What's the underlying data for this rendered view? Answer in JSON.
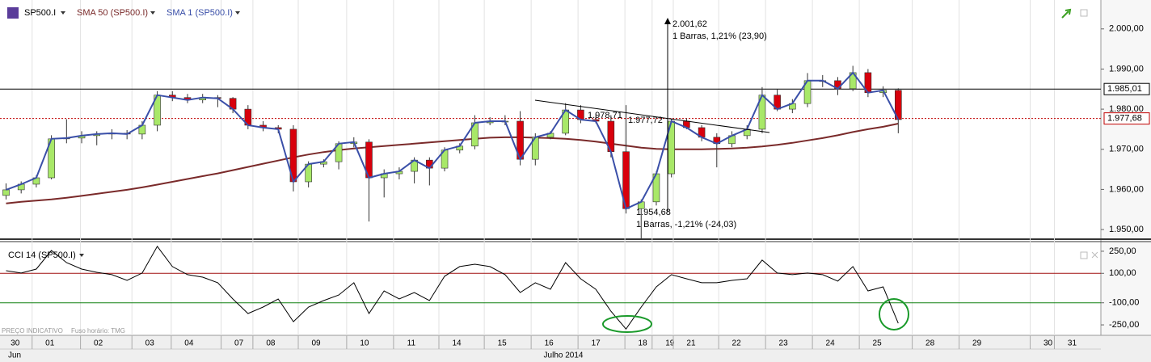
{
  "chart_data": [
    {
      "type": "candlestick",
      "name": "SP500.I",
      "up_color": "#a8e868",
      "down_color": "#d8000c",
      "xlim": [
        -0.4,
        72.4
      ],
      "ylim": [
        1947.8,
        2006.6
      ],
      "yticks": [
        {
          "value": 1950,
          "label": "1.950,00"
        },
        {
          "value": 1960,
          "label": "1.960,00"
        },
        {
          "value": 1970,
          "label": "1.970,00"
        },
        {
          "value": 1980,
          "label": "1.980,00"
        },
        {
          "value": 1990,
          "label": "1.990,00"
        },
        {
          "value": 2000,
          "label": "2.000,00"
        }
      ],
      "candles": [
        [
          1958.5,
          1961.5,
          1957.5,
          1959.9
        ],
        [
          1959.9,
          1962,
          1959,
          1961.3
        ],
        [
          1961.3,
          1963.5,
          1960.5,
          1962.9
        ],
        [
          1962.9,
          1973.5,
          1962.5,
          1972.6
        ],
        [
          1972.6,
          1977.5,
          1971.5,
          1972.8
        ],
        [
          1972.8,
          1974.5,
          1971.5,
          1973.4
        ],
        [
          1973.4,
          1974.5,
          1971,
          1973.8
        ],
        [
          1973.8,
          1975,
          1972.5,
          1974
        ],
        [
          1974,
          1974.8,
          1972.5,
          1973.8
        ],
        [
          1973.8,
          1977,
          1972.5,
          1976
        ],
        [
          1976,
          1984.5,
          1974.5,
          1983.5
        ],
        [
          1983.5,
          1984.5,
          1982,
          1982.9
        ],
        [
          1982.9,
          1983.8,
          1981.5,
          1982.3
        ],
        [
          1982.3,
          1983.8,
          1981.5,
          1982.9
        ],
        [
          1982.9,
          1983.5,
          1980.5,
          1982.7
        ],
        [
          1982.7,
          1983,
          1979,
          1980
        ],
        [
          1980,
          1981,
          1975,
          1976
        ],
        [
          1976,
          1977,
          1974.5,
          1975.4
        ],
        [
          1975.4,
          1976,
          1974,
          1975
        ],
        [
          1975,
          1976,
          1959.5,
          1961.9
        ],
        [
          1961.9,
          1967,
          1960.5,
          1966.3
        ],
        [
          1966.3,
          1967.5,
          1965.5,
          1966.9
        ],
        [
          1966.9,
          1972,
          1965,
          1971.4
        ],
        [
          1971.4,
          1973,
          1970.5,
          1971.8
        ],
        [
          1971.8,
          1972.5,
          1952,
          1962.9
        ],
        [
          1962.9,
          1965,
          1958,
          1963.9
        ],
        [
          1963.9,
          1965.5,
          1962.5,
          1964.5
        ],
        [
          1964.5,
          1968,
          1961.5,
          1967.3
        ],
        [
          1967.3,
          1968,
          1961,
          1965.3
        ],
        [
          1965.3,
          1970.5,
          1964.5,
          1969.8
        ],
        [
          1969.8,
          1971.5,
          1969,
          1970.8
        ],
        [
          1970.8,
          1978.5,
          1970,
          1976.6
        ],
        [
          1976.6,
          1978,
          1976,
          1977
        ],
        [
          1977,
          1978.5,
          1976,
          1977
        ],
        [
          1977,
          1979.5,
          1966,
          1967.5
        ],
        [
          1967.5,
          1974,
          1966,
          1973
        ],
        [
          1973,
          1974.5,
          1972.5,
          1974
        ],
        [
          1974,
          1981.5,
          1973.5,
          1979.8
        ],
        [
          1979.8,
          1981,
          1976.5,
          1977.4
        ],
        [
          1977.4,
          1978.7,
          1976.5,
          1977
        ],
        [
          1977,
          1978.5,
          1968,
          1969.4
        ],
        [
          1969.4,
          1981,
          1954,
          1955.2
        ],
        [
          1955.2,
          1957.5,
          1947.5,
          1956.9
        ],
        [
          1956.9,
          1964.5,
          1956,
          1963.9
        ],
        [
          1963.9,
          1977.7,
          1963,
          1977
        ],
        [
          1977,
          1977.7,
          1975,
          1975.4
        ],
        [
          1975.4,
          1976,
          1972,
          1973
        ],
        [
          1973,
          1974,
          1965.5,
          1971.4
        ],
        [
          1971.4,
          1974.5,
          1970.5,
          1973.4
        ],
        [
          1973.4,
          1976,
          1972.5,
          1975
        ],
        [
          1975,
          1985.5,
          1974,
          1983.5
        ],
        [
          1983.5,
          1985,
          1979.5,
          1980
        ],
        [
          1980,
          1982.5,
          1979,
          1981.4
        ],
        [
          1981.4,
          1989,
          1980.5,
          1987.1
        ],
        [
          1987.1,
          1988.5,
          1985.5,
          1987.1
        ],
        [
          1987.1,
          1988,
          1983.5,
          1985.1
        ],
        [
          1985.1,
          1990.8,
          1984.5,
          1989.1
        ],
        [
          1989.1,
          1990,
          1983,
          1984.1
        ],
        [
          1984.1,
          1985.7,
          1983,
          1984.7
        ],
        [
          1984.7,
          1985.2,
          1974,
          1977.4
        ]
      ],
      "series": [
        {
          "name": "SMA 50 (SP500.I)",
          "color": "#7a2a2a",
          "values": [
            1956.5,
            1956.9,
            1957.2,
            1957.5,
            1957.9,
            1958.4,
            1958.9,
            1959.4,
            1959.9,
            1960.5,
            1961.2,
            1961.9,
            1962.6,
            1963.3,
            1964,
            1964.8,
            1965.6,
            1966.4,
            1967.2,
            1968,
            1968.7,
            1969.3,
            1969.8,
            1970.2,
            1970.5,
            1970.8,
            1971.1,
            1971.4,
            1971.7,
            1972,
            1972.3,
            1972.6,
            1972.9,
            1973,
            1973,
            1972.9,
            1972.8,
            1972.6,
            1972.3,
            1971.9,
            1971.4,
            1970.9,
            1970.4,
            1970.1,
            1970,
            1970,
            1970,
            1970.1,
            1970.2,
            1970.4,
            1970.7,
            1971.1,
            1971.6,
            1972.2,
            1972.8,
            1973.5,
            1974.3,
            1975,
            1975.6,
            1976.4
          ]
        },
        {
          "name": "SMA 1 (SP500.I)",
          "color": "#3a4fa8",
          "values": [
            1959.9,
            1961.3,
            1962.9,
            1972.6,
            1972.8,
            1973.4,
            1973.8,
            1974,
            1973.8,
            1976,
            1983.5,
            1982.9,
            1982.3,
            1982.9,
            1982.7,
            1980,
            1976,
            1975.4,
            1975,
            1961.9,
            1966.3,
            1966.9,
            1971.4,
            1971.8,
            1962.9,
            1963.9,
            1964.5,
            1967.3,
            1965.3,
            1969.8,
            1970.8,
            1976.6,
            1977,
            1977,
            1967.5,
            1973,
            1974,
            1979.8,
            1977.4,
            1977,
            1969.4,
            1955.2,
            1956.9,
            1963.9,
            1977,
            1975.4,
            1973,
            1971.4,
            1973.4,
            1975,
            1983.5,
            1980,
            1981.4,
            1987.1,
            1987.1,
            1985.1,
            1989.1,
            1984.1,
            1984.7,
            1977.4
          ]
        }
      ],
      "hlines": [
        {
          "value": 1985.01,
          "label": "1.985,01",
          "color": "#000000"
        },
        {
          "value": 1977.68,
          "label": "1.977,68",
          "color": "#c00000"
        }
      ],
      "annotations": [
        "2.001,62",
        "1 Barras, 1,21% (23,90)",
        "1.978,71",
        "1.977,72",
        "1.954,68",
        "1 Barras, -1,21% (-24,03)"
      ]
    },
    {
      "type": "line",
      "xlim": [
        -0.4,
        72.4
      ],
      "ylim": [
        -321,
        310
      ],
      "yticks": [
        {
          "value": 250,
          "label": "250,00"
        },
        {
          "value": 100,
          "label": "100,00"
        },
        {
          "value": -100,
          "label": "-100,00"
        },
        {
          "value": -250,
          "label": "-250,00"
        }
      ],
      "series": [
        {
          "name": "CCI 14 (SP500.I)",
          "color": "#000000",
          "values": [
            118,
            102,
            129,
            255,
            173,
            129,
            107,
            91,
            52,
            102,
            283,
            146,
            91,
            74,
            36,
            -74,
            -173,
            -129,
            -74,
            -228,
            -129,
            -85,
            -47,
            36,
            -173,
            -19,
            -74,
            -30,
            -85,
            80,
            146,
            162,
            146,
            91,
            -30,
            36,
            -8,
            173,
            63,
            -8,
            -157,
            -278,
            -129,
            8,
            91,
            63,
            36,
            36,
            52,
            63,
            190,
            102,
            91,
            102,
            91,
            47,
            146,
            -19,
            8,
            -239
          ]
        }
      ],
      "hlines": [
        {
          "value": 100,
          "color": "#a01010"
        },
        {
          "value": -100,
          "color": "#108010"
        }
      ],
      "xticks": [
        {
          "value": 0.6,
          "label": "30"
        },
        {
          "value": 2.9,
          "label": "01"
        },
        {
          "value": 6.1,
          "label": "02"
        },
        {
          "value": 9.5,
          "label": "03"
        },
        {
          "value": 12.1,
          "label": "04"
        },
        {
          "value": 15.4,
          "label": "07"
        },
        {
          "value": 17.5,
          "label": "08"
        },
        {
          "value": 20.5,
          "label": "09"
        },
        {
          "value": 23.7,
          "label": "10"
        },
        {
          "value": 26.8,
          "label": "11"
        },
        {
          "value": 29.8,
          "label": "14"
        },
        {
          "value": 32.8,
          "label": "15"
        },
        {
          "value": 35.9,
          "label": "16"
        },
        {
          "value": 39,
          "label": "17"
        },
        {
          "value": 42.1,
          "label": "18"
        },
        {
          "value": 43.9,
          "label": "19"
        },
        {
          "value": 45.3,
          "label": "21"
        },
        {
          "value": 48.3,
          "label": "22"
        },
        {
          "value": 51.4,
          "label": "23"
        },
        {
          "value": 54.5,
          "label": "24"
        },
        {
          "value": 57.6,
          "label": "25"
        },
        {
          "value": 61.1,
          "label": "28"
        },
        {
          "value": 64.2,
          "label": "29"
        },
        {
          "value": 68.9,
          "label": "30"
        },
        {
          "value": 70.5,
          "label": "31"
        }
      ]
    }
  ],
  "footer": {
    "note": "PREÇO INDICATIVO",
    "timezone": "Fuso horário: TMG",
    "months": [
      "Jun",
      "Julho 2014"
    ]
  }
}
